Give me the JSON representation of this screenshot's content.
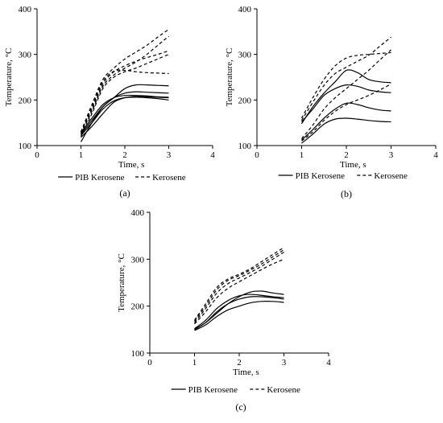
{
  "chart_data": [
    {
      "type": "line",
      "panel_label": "(a)",
      "xlabel": "Time, s",
      "ylabel": "Temperature, °C",
      "xlim": [
        0,
        4
      ],
      "ylim": [
        100,
        400
      ],
      "xticks": [
        0,
        1,
        2,
        3,
        4
      ],
      "yticks": [
        100,
        200,
        300,
        400
      ],
      "legend": [
        "PIB Kerosene",
        "Kerosene"
      ],
      "series": [
        {
          "group": "PIB Kerosene",
          "style": "solid",
          "x": [
            1,
            1.25,
            1.5,
            1.75,
            2,
            2.25,
            2.5,
            2.75,
            3
          ],
          "y": [
            108,
            150,
            185,
            205,
            215,
            218,
            217,
            216,
            215
          ]
        },
        {
          "group": "PIB Kerosene",
          "style": "solid",
          "x": [
            1,
            1.25,
            1.5,
            1.75,
            2,
            2.25,
            2.5,
            2.75,
            3
          ],
          "y": [
            118,
            142,
            170,
            195,
            205,
            208,
            207,
            206,
            205
          ]
        },
        {
          "group": "PIB Kerosene",
          "style": "solid",
          "x": [
            1,
            1.25,
            1.5,
            1.75,
            2,
            2.25,
            2.5,
            2.75,
            3
          ],
          "y": [
            122,
            150,
            180,
            198,
            205,
            206,
            205,
            203,
            200
          ]
        },
        {
          "group": "PIB Kerosene",
          "style": "solid",
          "x": [
            1,
            1.25,
            1.5,
            1.75,
            2,
            2.25,
            2.5,
            2.75,
            3
          ],
          "y": [
            125,
            155,
            185,
            205,
            225,
            233,
            233,
            232,
            231
          ]
        },
        {
          "group": "PIB Kerosene",
          "style": "solid",
          "x": [
            1,
            1.25,
            1.5,
            1.75,
            2,
            2.25,
            2.5,
            2.75,
            3
          ],
          "y": [
            128,
            160,
            190,
            205,
            210,
            210,
            209,
            207,
            206
          ]
        },
        {
          "group": "Kerosene",
          "style": "dashed",
          "x": [
            1,
            1.25,
            1.5,
            1.75,
            2,
            2.25,
            2.5,
            2.75,
            3
          ],
          "y": [
            130,
            185,
            240,
            263,
            265,
            262,
            260,
            259,
            258
          ]
        },
        {
          "group": "Kerosene",
          "style": "dashed",
          "x": [
            1,
            1.25,
            1.5,
            1.75,
            2,
            2.25,
            2.5,
            2.75,
            3
          ],
          "y": [
            128,
            180,
            235,
            262,
            275,
            285,
            293,
            300,
            308
          ]
        },
        {
          "group": "Kerosene",
          "style": "dashed",
          "x": [
            1,
            1.25,
            1.5,
            1.75,
            2,
            2.25,
            2.5,
            2.75,
            3
          ],
          "y": [
            125,
            175,
            230,
            255,
            270,
            283,
            300,
            320,
            340
          ]
        },
        {
          "group": "Kerosene",
          "style": "dashed",
          "x": [
            1,
            1.25,
            1.5,
            1.75,
            2,
            2.25,
            2.5,
            2.75,
            3
          ],
          "y": [
            120,
            170,
            225,
            250,
            262,
            270,
            280,
            290,
            300
          ]
        },
        {
          "group": "Kerosene",
          "style": "dashed",
          "x": [
            1,
            1.25,
            1.5,
            1.75,
            2,
            2.25,
            2.5,
            2.75,
            3
          ],
          "y": [
            130,
            190,
            245,
            270,
            290,
            305,
            320,
            338,
            355
          ]
        }
      ]
    },
    {
      "type": "line",
      "panel_label": "(b)",
      "xlabel": "Time, s",
      "ylabel": "Temperature, °C",
      "xlim": [
        0,
        4
      ],
      "ylim": [
        100,
        400
      ],
      "xticks": [
        0,
        1,
        2,
        3,
        4
      ],
      "yticks": [
        100,
        200,
        300,
        400
      ],
      "legend": [
        "PIB Kerosene",
        "Kerosene"
      ],
      "series": [
        {
          "group": "PIB Kerosene",
          "style": "solid",
          "x": [
            1,
            1.25,
            1.5,
            1.75,
            2,
            2.25,
            2.5,
            2.75,
            3
          ],
          "y": [
            148,
            185,
            215,
            240,
            265,
            260,
            245,
            240,
            238
          ]
        },
        {
          "group": "PIB Kerosene",
          "style": "solid",
          "x": [
            1,
            1.25,
            1.5,
            1.75,
            2,
            2.25,
            2.5,
            2.75,
            3
          ],
          "y": [
            152,
            180,
            210,
            225,
            233,
            230,
            222,
            218,
            216
          ]
        },
        {
          "group": "PIB Kerosene",
          "style": "solid",
          "x": [
            1,
            1.25,
            1.5,
            1.75,
            2,
            2.25,
            2.5,
            2.75,
            3
          ],
          "y": [
            112,
            135,
            160,
            180,
            193,
            190,
            183,
            178,
            176
          ]
        },
        {
          "group": "PIB Kerosene",
          "style": "solid",
          "x": [
            1,
            1.25,
            1.5,
            1.75,
            2,
            2.25,
            2.5,
            2.75,
            3
          ],
          "y": [
            105,
            125,
            147,
            158,
            160,
            158,
            155,
            153,
            152
          ]
        },
        {
          "group": "Kerosene",
          "style": "dashed",
          "x": [
            1,
            1.25,
            1.5,
            1.75,
            2,
            2.25,
            2.5,
            2.75,
            3
          ],
          "y": [
            160,
            205,
            245,
            275,
            292,
            298,
            300,
            302,
            304
          ]
        },
        {
          "group": "Kerosene",
          "style": "dashed",
          "x": [
            1,
            1.25,
            1.5,
            1.75,
            2,
            2.25,
            2.5,
            2.75,
            3
          ],
          "y": [
            155,
            195,
            232,
            258,
            272,
            285,
            298,
            318,
            338
          ]
        },
        {
          "group": "Kerosene",
          "style": "dashed",
          "x": [
            1,
            1.25,
            1.5,
            1.75,
            2,
            2.25,
            2.5,
            2.75,
            3
          ],
          "y": [
            115,
            145,
            180,
            205,
            225,
            245,
            265,
            288,
            310
          ]
        },
        {
          "group": "Kerosene",
          "style": "dashed",
          "x": [
            1,
            1.25,
            1.5,
            1.75,
            2,
            2.25,
            2.5,
            2.75,
            3
          ],
          "y": [
            110,
            130,
            155,
            175,
            190,
            200,
            210,
            222,
            235
          ]
        }
      ]
    },
    {
      "type": "line",
      "panel_label": "(c)",
      "xlabel": "Time, s",
      "ylabel": "Temperature, °C",
      "xlim": [
        0,
        4
      ],
      "ylim": [
        100,
        400
      ],
      "xticks": [
        0,
        1,
        2,
        3,
        4
      ],
      "yticks": [
        100,
        200,
        300,
        400
      ],
      "legend": [
        "PIB Kerosene",
        "Kerosene"
      ],
      "series": [
        {
          "group": "PIB Kerosene",
          "style": "solid",
          "x": [
            1,
            1.25,
            1.5,
            1.75,
            2,
            2.25,
            2.5,
            2.75,
            3
          ],
          "y": [
            150,
            165,
            185,
            205,
            220,
            230,
            232,
            228,
            225
          ]
        },
        {
          "group": "PIB Kerosene",
          "style": "solid",
          "x": [
            1,
            1.25,
            1.5,
            1.75,
            2,
            2.25,
            2.5,
            2.75,
            3
          ],
          "y": [
            152,
            170,
            195,
            212,
            222,
            225,
            223,
            220,
            218
          ]
        },
        {
          "group": "PIB Kerosene",
          "style": "solid",
          "x": [
            1,
            1.25,
            1.5,
            1.75,
            2,
            2.25,
            2.5,
            2.75,
            3
          ],
          "y": [
            150,
            165,
            188,
            205,
            215,
            220,
            220,
            218,
            215
          ]
        },
        {
          "group": "PIB Kerosene",
          "style": "solid",
          "x": [
            1,
            1.25,
            1.5,
            1.75,
            2,
            2.25,
            2.5,
            2.75,
            3
          ],
          "y": [
            148,
            160,
            178,
            192,
            200,
            207,
            210,
            210,
            208
          ]
        },
        {
          "group": "Kerosene",
          "style": "dashed",
          "x": [
            1,
            1.25,
            1.5,
            1.75,
            2,
            2.25,
            2.5,
            2.75,
            3
          ],
          "y": [
            170,
            205,
            240,
            258,
            268,
            280,
            295,
            310,
            325
          ]
        },
        {
          "group": "Kerosene",
          "style": "dashed",
          "x": [
            1,
            1.25,
            1.5,
            1.75,
            2,
            2.25,
            2.5,
            2.75,
            3
          ],
          "y": [
            168,
            200,
            235,
            255,
            265,
            277,
            290,
            305,
            320
          ]
        },
        {
          "group": "Kerosene",
          "style": "dashed",
          "x": [
            1,
            1.25,
            1.5,
            1.75,
            2,
            2.25,
            2.5,
            2.75,
            3
          ],
          "y": [
            165,
            195,
            228,
            248,
            260,
            272,
            285,
            300,
            315
          ]
        },
        {
          "group": "Kerosene",
          "style": "dashed",
          "x": [
            1,
            1.25,
            1.5,
            1.75,
            2,
            2.25,
            2.5,
            2.75,
            3
          ],
          "y": [
            162,
            188,
            218,
            238,
            252,
            265,
            278,
            290,
            300
          ]
        }
      ]
    }
  ]
}
